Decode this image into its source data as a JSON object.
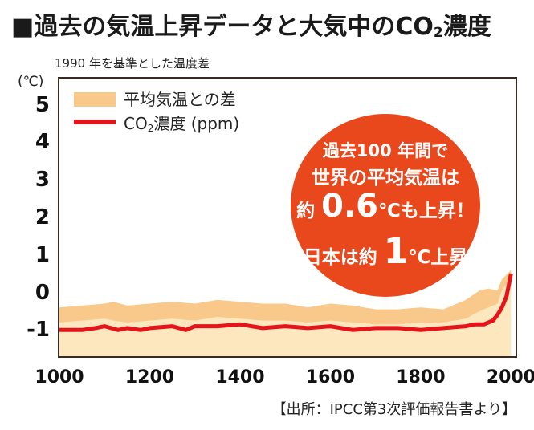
{
  "title": {
    "main": "■過去の気温上昇データと大気中のCO",
    "sub": "2",
    "tail": "濃度"
  },
  "subtitle": "1990 年を基準とした温度差",
  "unit": "(℃)",
  "legend": {
    "temp_label": "平均気温との差",
    "co2_label_a": "CO",
    "co2_label_sub": "2",
    "co2_label_b": "濃度 (ppm)"
  },
  "callout": {
    "line1": "過去100 年間で",
    "line2": "世界の平均気温は",
    "line3_a": "約",
    "line3_big": "0.6",
    "line3_b": "℃も上昇！",
    "line4_a": "日本は約",
    "line4_big": "1",
    "line4_b": "℃上昇"
  },
  "source": "【出所：IPCC第3次評価報告書より】",
  "colors": {
    "temp_fill": "#f8c98a",
    "co2_line": "#e4141a",
    "callout_bg": "#e8481c"
  },
  "chart_data": {
    "type": "area",
    "xlim": [
      1000,
      2010
    ],
    "ylim": [
      -1.7,
      5.7
    ],
    "xticks": [
      "1000",
      "1200",
      "1400",
      "1600",
      "1800",
      "2000"
    ],
    "yticks": [
      "5",
      "4",
      "3",
      "2",
      "1",
      "0",
      "-1"
    ],
    "series": [
      {
        "name": "平均気温との差",
        "kind": "area",
        "x": [
          1000,
          1050,
          1100,
          1120,
          1150,
          1200,
          1250,
          1300,
          1350,
          1400,
          1450,
          1500,
          1550,
          1600,
          1650,
          1700,
          1750,
          1800,
          1850,
          1900,
          1930,
          1950,
          1970,
          1980,
          2000
        ],
        "upper": [
          -0.4,
          -0.35,
          -0.3,
          -0.25,
          -0.35,
          -0.3,
          -0.25,
          -0.3,
          -0.2,
          -0.25,
          -0.3,
          -0.3,
          -0.4,
          -0.3,
          -0.35,
          -0.45,
          -0.45,
          -0.4,
          -0.45,
          -0.2,
          0.05,
          0.1,
          0.05,
          0.35,
          0.6
        ],
        "lower": [
          -0.8,
          -0.75,
          -0.7,
          -0.75,
          -0.8,
          -0.75,
          -0.7,
          -0.75,
          -0.65,
          -0.7,
          -0.75,
          -0.75,
          -0.8,
          -0.75,
          -0.8,
          -0.85,
          -0.85,
          -0.8,
          -0.8,
          -0.7,
          -0.5,
          -0.4,
          -0.3,
          0.05,
          0.4
        ]
      },
      {
        "name": "CO2濃度 (ppm)",
        "kind": "line",
        "x": [
          1000,
          1050,
          1080,
          1100,
          1130,
          1150,
          1180,
          1200,
          1250,
          1280,
          1300,
          1350,
          1400,
          1450,
          1500,
          1550,
          1600,
          1650,
          1700,
          1750,
          1800,
          1850,
          1900,
          1920,
          1940,
          1960,
          1970,
          1980,
          1990,
          2000
        ],
        "y": [
          -1.0,
          -1.0,
          -0.95,
          -0.9,
          -1.0,
          -0.95,
          -1.0,
          -0.95,
          -0.9,
          -1.0,
          -0.9,
          -0.9,
          -0.85,
          -0.95,
          -0.9,
          -0.95,
          -0.9,
          -1.0,
          -0.95,
          -0.95,
          -1.0,
          -0.95,
          -0.9,
          -0.85,
          -0.85,
          -0.75,
          -0.6,
          -0.4,
          -0.1,
          0.5
        ]
      }
    ]
  }
}
